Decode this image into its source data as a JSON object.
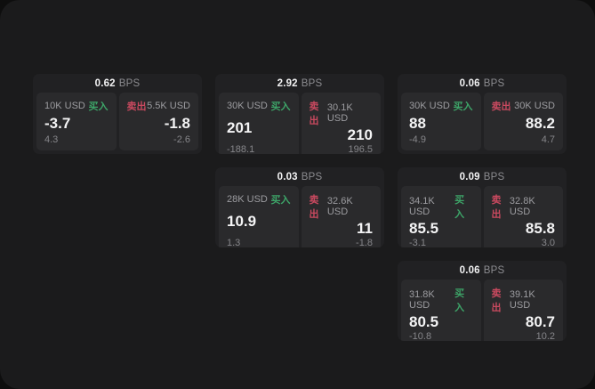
{
  "page": {
    "bps_suffix": "BPS",
    "buy_label": "买入",
    "sell_label": "卖出"
  },
  "colors": {
    "buy": "#3da468",
    "sell": "#c9495f",
    "page_bg": "#1b1b1c",
    "card_bg": "#212123",
    "panel_bg": "#2a2a2c"
  },
  "cards": [
    {
      "col": 1,
      "row": 1,
      "bps": "0.62",
      "buy": {
        "size": "10K USD",
        "value": "-3.7",
        "delta": "4.3"
      },
      "sell": {
        "size": "5.5K USD",
        "value": "-1.8",
        "delta": "-2.6"
      }
    },
    {
      "col": 2,
      "row": 1,
      "bps": "2.92",
      "buy": {
        "size": "30K USD",
        "value": "201",
        "delta": "-188.1"
      },
      "sell": {
        "size": "30.1K USD",
        "value": "210",
        "delta": "196.5"
      }
    },
    {
      "col": 3,
      "row": 1,
      "bps": "0.06",
      "buy": {
        "size": "30K USD",
        "value": "88",
        "delta": "-4.9"
      },
      "sell": {
        "size": "30K USD",
        "value": "88.2",
        "delta": "4.7"
      }
    },
    {
      "col": 2,
      "row": 2,
      "bps": "0.03",
      "buy": {
        "size": "28K USD",
        "value": "10.9",
        "delta": "1.3"
      },
      "sell": {
        "size": "32.6K USD",
        "value": "11",
        "delta": "-1.8"
      }
    },
    {
      "col": 3,
      "row": 2,
      "bps": "0.09",
      "buy": {
        "size": "34.1K USD",
        "value": "85.5",
        "delta": "-3.1"
      },
      "sell": {
        "size": "32.8K USD",
        "value": "85.8",
        "delta": "3.0"
      }
    },
    {
      "col": 3,
      "row": 3,
      "bps": "0.06",
      "buy": {
        "size": "31.8K USD",
        "value": "80.5",
        "delta": "-10.8"
      },
      "sell": {
        "size": "39.1K USD",
        "value": "80.7",
        "delta": "10.2"
      }
    }
  ]
}
